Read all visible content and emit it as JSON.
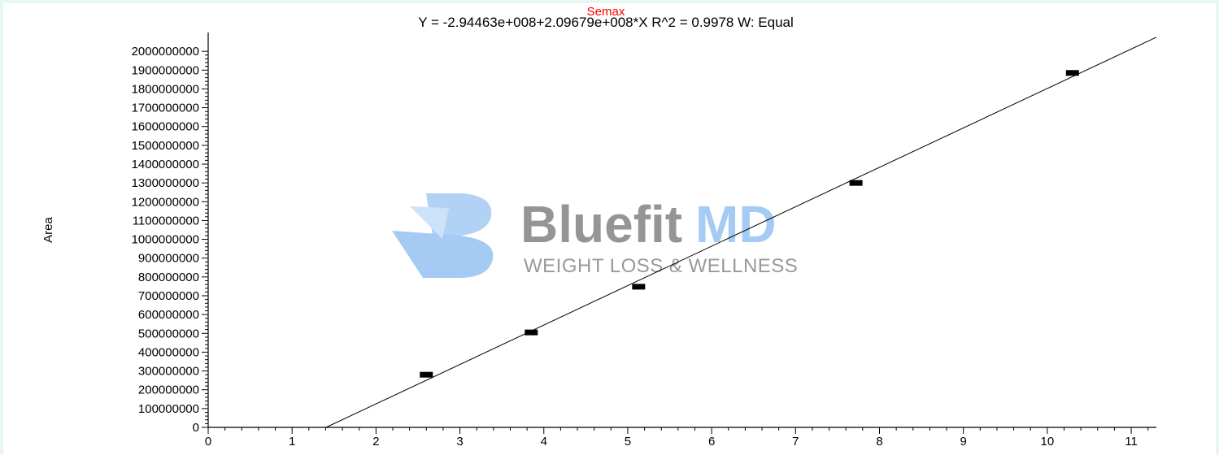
{
  "chart_data": {
    "type": "scatter",
    "title": "Semax",
    "subtitle": "Y = -2.94463e+008+2.09679e+008*X   R^2 = 0.9978   W: Equal",
    "xlabel": "",
    "ylabel": "Area",
    "xlim": [
      0,
      11.3
    ],
    "ylim": [
      0,
      2100000000
    ],
    "x_ticks": [
      0,
      1,
      2,
      3,
      4,
      5,
      6,
      7,
      8,
      9,
      10,
      11
    ],
    "y_ticks": [
      0,
      100000000,
      200000000,
      300000000,
      400000000,
      500000000,
      600000000,
      700000000,
      800000000,
      900000000,
      1000000000,
      1100000000,
      1200000000,
      1300000000,
      1400000000,
      1500000000,
      1600000000,
      1700000000,
      1800000000,
      1900000000,
      2000000000
    ],
    "points": [
      {
        "x": 2.6,
        "y": 280000000
      },
      {
        "x": 3.85,
        "y": 505000000
      },
      {
        "x": 5.13,
        "y": 748000000
      },
      {
        "x": 7.72,
        "y": 1300000000
      },
      {
        "x": 10.3,
        "y": 1885000000
      }
    ],
    "fit_line": {
      "intercept": -294463000,
      "slope": 209679000
    },
    "grid": false
  },
  "watermark": {
    "name_part1": "Bluefit",
    "name_part2": "MD",
    "tagline": "WEIGHT LOSS & WELLNESS",
    "colors": {
      "gray": "#8a8a8a",
      "blue": "#9cc5f2"
    }
  }
}
